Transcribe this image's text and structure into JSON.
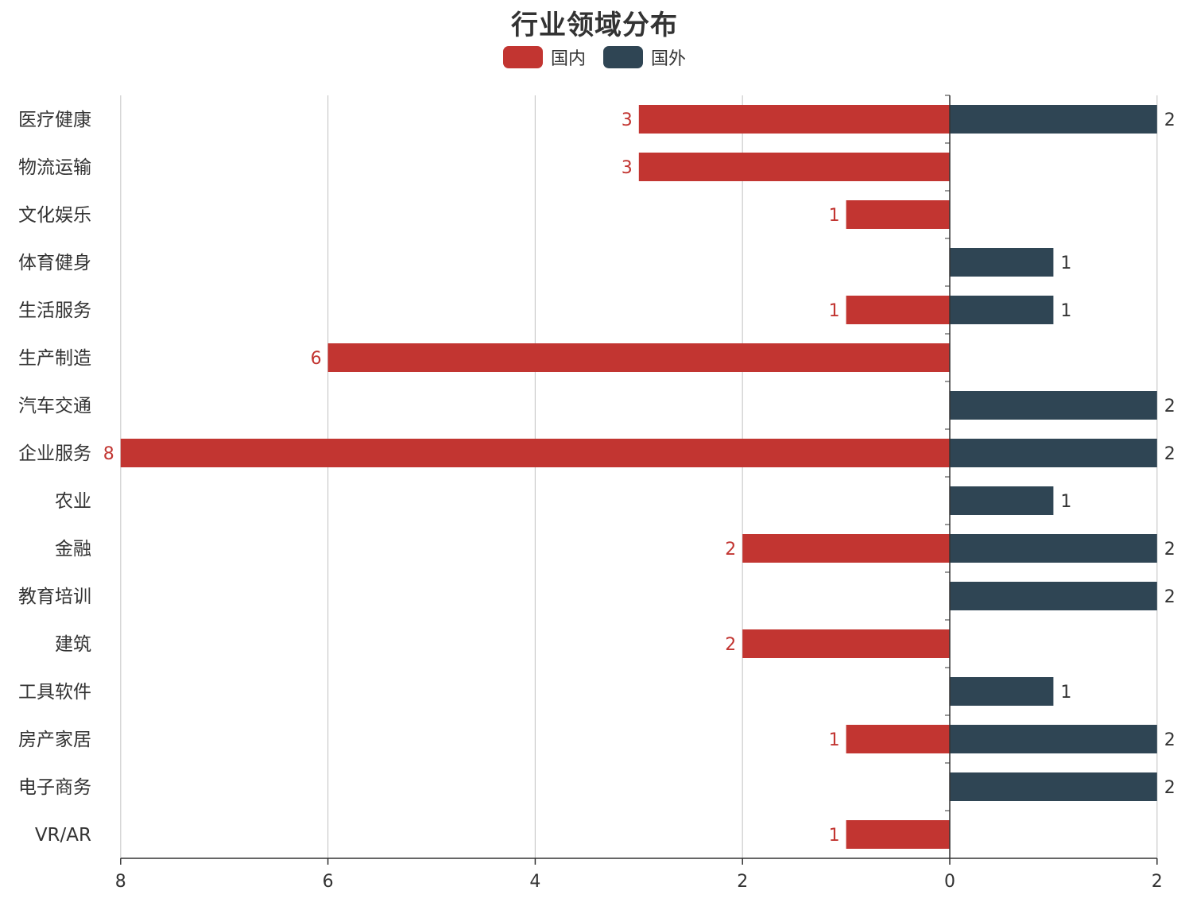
{
  "title": "行业领域分布",
  "legend": [
    {
      "name": "国内",
      "color": "#c23531"
    },
    {
      "name": "国外",
      "color": "#2f4554"
    }
  ],
  "chart_data": {
    "type": "bar",
    "orientation": "horizontal-butterfly",
    "title": "行业领域分布",
    "categories": [
      "医疗健康",
      "物流运输",
      "文化娱乐",
      "体育健身",
      "生活服务",
      "生产制造",
      "汽车交通",
      "企业服务",
      "农业",
      "金融",
      "教育培训",
      "建筑",
      "工具软件",
      "房产家居",
      "电子商务",
      "VR/AR"
    ],
    "series": [
      {
        "name": "国内",
        "color": "#c23531",
        "values": [
          3,
          3,
          1,
          null,
          1,
          6,
          null,
          8,
          null,
          2,
          null,
          2,
          null,
          1,
          null,
          1
        ]
      },
      {
        "name": "国外",
        "color": "#2f4554",
        "values": [
          2,
          null,
          null,
          1,
          1,
          null,
          2,
          2,
          1,
          2,
          2,
          null,
          1,
          2,
          2,
          null
        ]
      }
    ],
    "x_ticks": [
      "8",
      "6",
      "4",
      "2",
      "0",
      "2"
    ],
    "xlim_left": 8,
    "xlim_right": 2,
    "grid": true,
    "legend_position": "top-center",
    "data_labels": true
  }
}
